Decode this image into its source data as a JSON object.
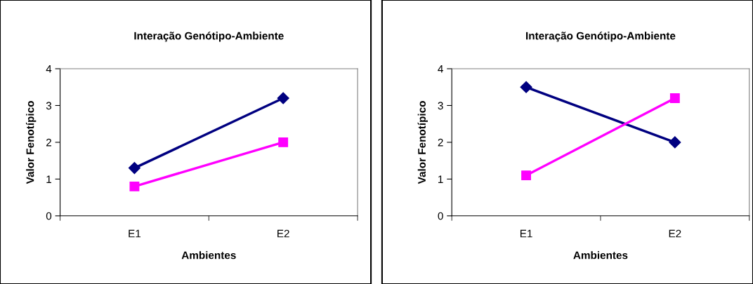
{
  "chart_data": [
    {
      "type": "line",
      "title": "Interação Genótipo-Ambiente",
      "xlabel": "Ambientes",
      "ylabel": "Valor Fenotípico",
      "categories": [
        "E1",
        "E2"
      ],
      "ylim": [
        0,
        4
      ],
      "yticks": [
        0,
        1,
        2,
        3,
        4
      ],
      "grid": false,
      "series": [
        {
          "color": "#000080",
          "marker": "diamond",
          "values": [
            1.3,
            3.2
          ]
        },
        {
          "color": "#ff00ff",
          "marker": "square",
          "values": [
            0.8,
            2.0
          ]
        }
      ]
    },
    {
      "type": "line",
      "title": "Interação Genótipo-Ambiente",
      "xlabel": "Ambientes",
      "ylabel": "Valor Fenotípico",
      "categories": [
        "E1",
        "E2"
      ],
      "ylim": [
        0,
        4
      ],
      "yticks": [
        0,
        1,
        2,
        3,
        4
      ],
      "grid": false,
      "series": [
        {
          "color": "#000080",
          "marker": "diamond",
          "values": [
            3.5,
            2.0
          ]
        },
        {
          "color": "#ff00ff",
          "marker": "square",
          "values": [
            1.1,
            3.2
          ]
        }
      ]
    }
  ]
}
